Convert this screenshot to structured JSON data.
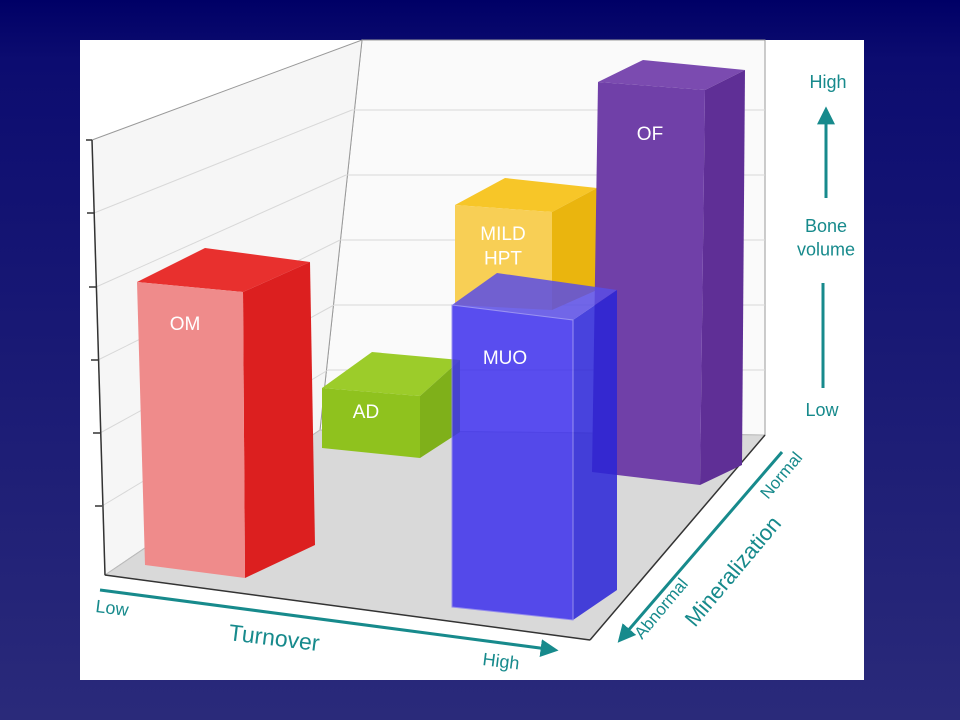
{
  "bars": [
    {
      "label": "OM"
    },
    {
      "label": "AD"
    },
    {
      "label": "MILD\nHPT"
    },
    {
      "label": "MUO"
    },
    {
      "label": "OF"
    }
  ],
  "turnover_axis": {
    "title": "Turnover",
    "low": "Low",
    "high": "High"
  },
  "mineralization_axis": {
    "title": "Mineralization",
    "low": "Abnormal",
    "high": "Normal"
  },
  "bone_volume_axis": {
    "title": "Bone\nvolume",
    "low": "Low",
    "high": "High"
  }
}
